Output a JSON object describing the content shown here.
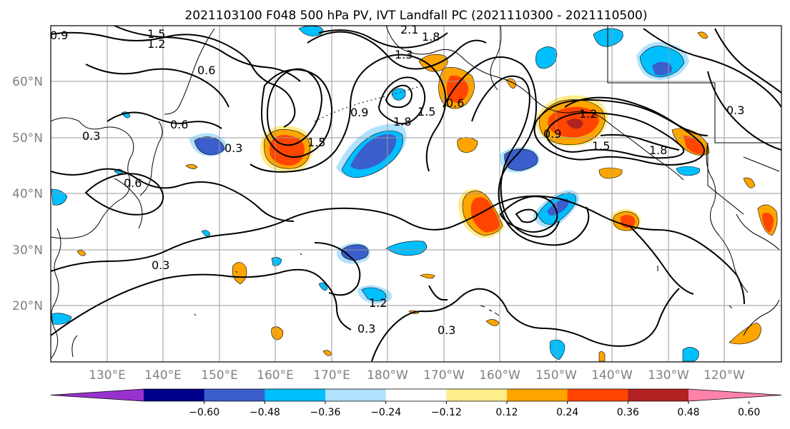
{
  "map": {
    "title": "2021103100 F048 500 hPa PV, IVT Landfall PC (2021110300 - 2021110500)",
    "lat_labels": [
      "60°N",
      "50°N",
      "40°N",
      "30°N",
      "20°N"
    ],
    "lon_labels": [
      "130°E",
      "140°E",
      "150°E",
      "160°E",
      "170°E",
      "180°W",
      "170°W",
      "160°W",
      "150°W",
      "140°W",
      "130°W",
      "120°W"
    ],
    "contour_labels": [
      "0.9",
      "1.5",
      "1.2",
      "2.1",
      "1.8",
      "1.3",
      "0.6",
      "0.3",
      "0.6",
      "0.6",
      "0.9",
      "1.8",
      "1.5",
      "0.6",
      "1.5",
      "1.2",
      "0.9",
      "1.5",
      "1.8",
      "0.3",
      "0.3",
      "0.3",
      "0.3",
      "0.3",
      "1.2"
    ],
    "colorbar": {
      "ticks": [
        "−0.60",
        "−0.48",
        "−0.36",
        "−0.24",
        "−0.12",
        "0.12",
        "0.24",
        "0.36",
        "0.48",
        "0.60"
      ],
      "colors": [
        "#9932cc",
        "#00008b",
        "#3a5fcd",
        "#00bfff",
        "#b0e2ff",
        "#ffffff",
        "#ffec8b",
        "#ffa500",
        "#ff4500",
        "#b22222",
        "#ff82ab"
      ]
    },
    "fill_colors": {
      "neg_light": "#b0e2ff",
      "neg_mid": "#00bfff",
      "neg_strong": "#3a5fcd",
      "neg_max": "#9932cc",
      "pos_light": "#ffec8b",
      "pos_mid": "#ffa500",
      "pos_strong": "#ff4500",
      "pos_max": "#b22222"
    }
  }
}
